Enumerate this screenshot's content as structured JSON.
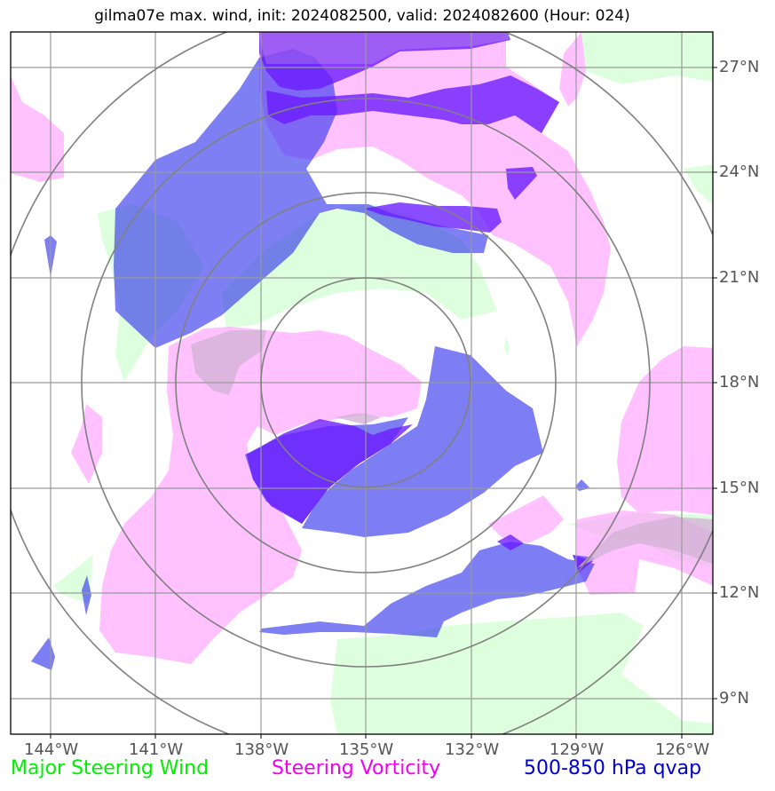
{
  "title": "gilma07e max. wind, init: 2024082500, valid: 2024082600 (Hour: 024)",
  "latitude_labels": [
    "27°N",
    "24°N",
    "21°N",
    "18°N",
    "15°N",
    "12°N",
    "9°N"
  ],
  "longitude_labels": [
    "144°W",
    "141°W",
    "138°W",
    "135°W",
    "132°W",
    "129°W",
    "126°W"
  ],
  "legend": {
    "wind": "Major Steering Wind",
    "vorticity": "Steering Vorticity",
    "qvap": "500-850 hPa qvap"
  },
  "colors": {
    "wind_label": "#00ee00",
    "vorticity_label": "#ee00ee",
    "qvap_label": "#0000cc",
    "wind_fill": "#ccffcc",
    "vorticity_fill": "#ffaaff",
    "qvap_fill": "#3030ee",
    "qvap_strong_fill": "#6a1aff",
    "grid": "#999999",
    "range_rings": "#808080"
  }
}
